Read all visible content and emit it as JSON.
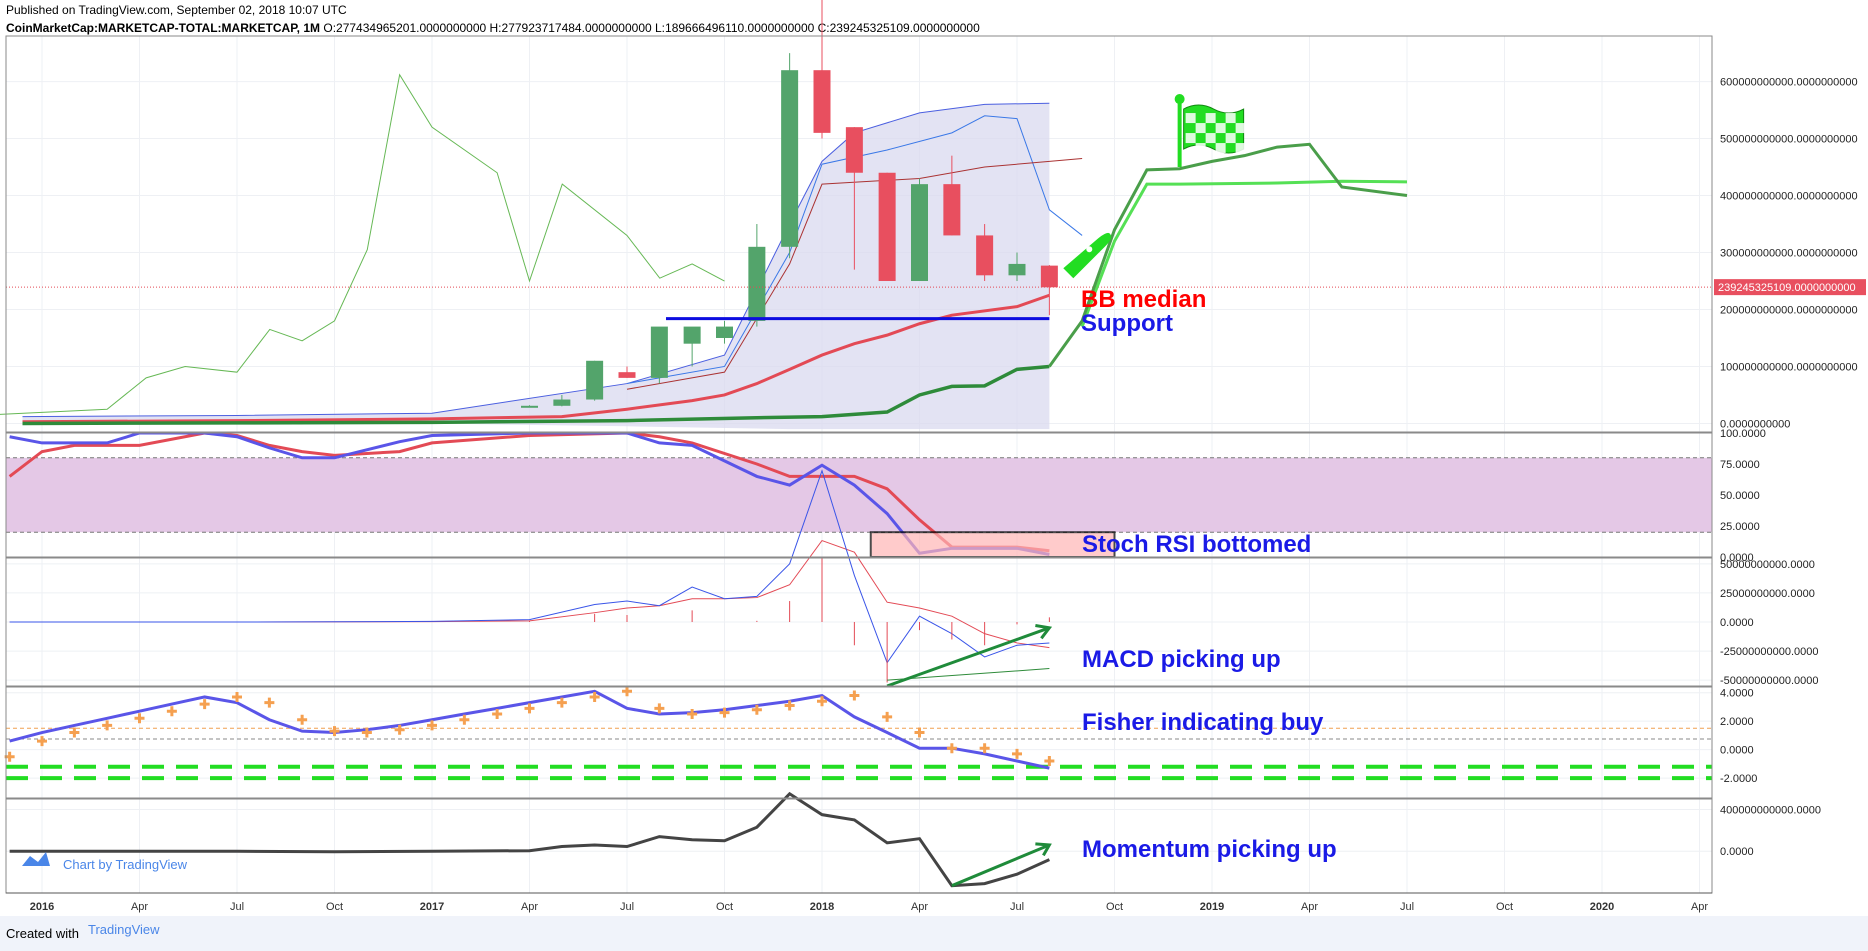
{
  "header": {
    "published": "Published on TradingView.com, September 02, 2018 10:07 UTC",
    "symbol": "CoinMarketCap:MARKETCAP-TOTAL:MARKETCAP, 1M",
    "ohlc": "O:277434965201.0000000000 H:277923717484.0000000000 L:189666496110.0000000000 C:239245325109.0000000000"
  },
  "footer": {
    "created": "Created with",
    "brand": "TradingView"
  },
  "watermark": "Chart by TradingView",
  "price_badge": "239245325109.0000000000",
  "annotations": {
    "bb_median": "BB median",
    "support": "Support",
    "stoch": "Stoch RSI bottomed",
    "macd": "MACD picking up",
    "fisher": "Fisher indicating buy",
    "momentum": "Momentum picking up"
  },
  "colors": {
    "up": "#53a46b",
    "down": "#e84f5f",
    "annot_red": "#ff0000",
    "annot_blue": "#1a1ae6",
    "green_proj": "#22dd22",
    "bb_fill": "#d9d9ef",
    "stoch_band": "#e4c8e6"
  },
  "chart_data": [
    {
      "type": "candlestick",
      "title": "CoinMarketCap:MARKETCAP-TOTAL:MARKETCAP, 1M",
      "ylim": [
        -15000000000,
        680000000000
      ],
      "y_ticks": [
        {
          "value": 600000000000,
          "label": "600000000000.0000000000"
        },
        {
          "value": 500000000000,
          "label": "500000000000.0000000000"
        },
        {
          "value": 400000000000,
          "label": "400000000000.0000000000"
        },
        {
          "value": 300000000000,
          "label": "300000000000.0000000000"
        },
        {
          "value": 200000000000,
          "label": "200000000000.0000000000"
        },
        {
          "value": 100000000000,
          "label": "100000000000.0000000000"
        },
        {
          "value": 0,
          "label": "0.0000000000"
        }
      ],
      "candles": [
        {
          "t": 2017.5,
          "o": 9,
          "h": 10,
          "l": 8,
          "c": 8
        },
        {
          "t": 2017.583,
          "o": 8,
          "h": 12,
          "l": 7,
          "c": 17
        },
        {
          "t": 2017.667,
          "o": 14,
          "h": 15,
          "l": 10,
          "c": 17
        },
        {
          "t": 2017.75,
          "o": 15,
          "h": 18,
          "l": 14,
          "c": 17
        },
        {
          "t": 2017.25,
          "o": 3,
          "h": 3.2,
          "l": 2.9,
          "c": 3.1
        },
        {
          "t": 2017.333,
          "o": 3.1,
          "h": 5,
          "l": 3,
          "c": 4.2
        },
        {
          "t": 2017.417,
          "o": 4.2,
          "h": 11,
          "l": 4,
          "c": 11
        },
        {
          "t": 2017.833,
          "o": 18,
          "h": 35,
          "l": 17,
          "c": 31
        },
        {
          "t": 2017.917,
          "o": 31,
          "h": 65,
          "l": 29,
          "c": 62
        },
        {
          "t": 2018.0,
          "o": 62,
          "h": 83,
          "l": 50,
          "c": 51
        },
        {
          "t": 2018.083,
          "o": 52,
          "h": 52,
          "l": 27,
          "c": 44
        },
        {
          "t": 2018.167,
          "o": 44,
          "h": 44,
          "l": 25,
          "c": 25
        },
        {
          "t": 2018.25,
          "o": 25,
          "h": 43,
          "l": 25,
          "c": 42
        },
        {
          "t": 2018.333,
          "o": 42,
          "h": 47,
          "l": 33,
          "c": 33
        },
        {
          "t": 2018.417,
          "o": 33,
          "h": 35,
          "l": 25,
          "c": 26
        },
        {
          "t": 2018.5,
          "o": 26,
          "h": 30,
          "l": 25,
          "c": 28
        },
        {
          "t": 2018.583,
          "o": 27.7,
          "h": 27.8,
          "l": 19,
          "c": 23.9
        }
      ],
      "series": [
        {
          "name": "",
          "t": [
            2015.917,
            2016.5,
            2016.75,
            2017.0,
            2017.25,
            2017.5,
            2017.75,
            2018.0,
            2018.25,
            2018.5,
            2018.583
          ],
          "values": [
            1,
            1.5,
            2,
            3,
            5,
            8,
            12,
            30,
            60,
            70,
            75
          ]
        },
        {
          "name": "",
          "t": [
            2015.917,
            2016.5,
            2017.0,
            2017.25,
            2017.5,
            2017.75,
            2018.0,
            2018.25,
            2018.5,
            2018.583
          ],
          "values": [
            0.5,
            1,
            1.5,
            2,
            3,
            6,
            10,
            20,
            35,
            40
          ]
        }
      ],
      "support_level": 184000000000,
      "last_close": 239245325109
    },
    {
      "type": "line",
      "ylim": [
        0,
        100
      ],
      "y_ticks": [
        {
          "value": 100,
          "label": "100.0000"
        },
        {
          "value": 75,
          "label": "75.0000"
        },
        {
          "value": 50,
          "label": "50.0000"
        },
        {
          "value": 25,
          "label": "25.0000"
        },
        {
          "value": 0,
          "label": "0.0000"
        }
      ],
      "band": [
        20,
        80
      ]
    },
    {
      "type": "line",
      "ylim": [
        -55000000000,
        55000000000
      ],
      "y_ticks": [
        {
          "value": 50000000000,
          "label": "50000000000.0000"
        },
        {
          "value": 25000000000,
          "label": "25000000000.0000"
        },
        {
          "value": 0,
          "label": "0.0000"
        },
        {
          "value": -25000000000,
          "label": "-25000000000.0000"
        },
        {
          "value": -50000000000,
          "label": "-50000000000.0000"
        }
      ]
    },
    {
      "type": "line",
      "ylim": [
        -3.4,
        4.4
      ],
      "y_ticks": [
        {
          "value": 4,
          "label": "4.0000"
        },
        {
          "value": 2,
          "label": "2.0000"
        },
        {
          "value": 0,
          "label": "0.0000"
        },
        {
          "value": -2,
          "label": "-2.0000"
        }
      ]
    },
    {
      "type": "line",
      "ylim": [
        -400000000000,
        500000000000
      ],
      "y_ticks": [
        {
          "value": 400000000000,
          "label": "400000000000.0000"
        },
        {
          "value": 0,
          "label": "0.0000"
        }
      ]
    }
  ],
  "x_axis": {
    "ticks": [
      {
        "label": "2016",
        "t": 2016.0,
        "bold": true
      },
      {
        "label": "Apr",
        "t": 2016.25
      },
      {
        "label": "Jul",
        "t": 2016.5
      },
      {
        "label": "Oct",
        "t": 2016.75
      },
      {
        "label": "2017",
        "t": 2017.0,
        "bold": true
      },
      {
        "label": "Apr",
        "t": 2017.25
      },
      {
        "label": "Jul",
        "t": 2017.5
      },
      {
        "label": "Oct",
        "t": 2017.75
      },
      {
        "label": "2018",
        "t": 2018.0,
        "bold": true
      },
      {
        "label": "Apr",
        "t": 2018.25
      },
      {
        "label": "Jul",
        "t": 2018.5
      },
      {
        "label": "Oct",
        "t": 2018.75
      },
      {
        "label": "2019",
        "t": 2019.0,
        "bold": true
      },
      {
        "label": "Apr",
        "t": 2019.25
      },
      {
        "label": "Jul",
        "t": 2019.5
      },
      {
        "label": "Oct",
        "t": 2019.75
      },
      {
        "label": "2020",
        "t": 2020.0,
        "bold": true
      },
      {
        "label": "Apr",
        "t": 2020.25
      }
    ]
  }
}
